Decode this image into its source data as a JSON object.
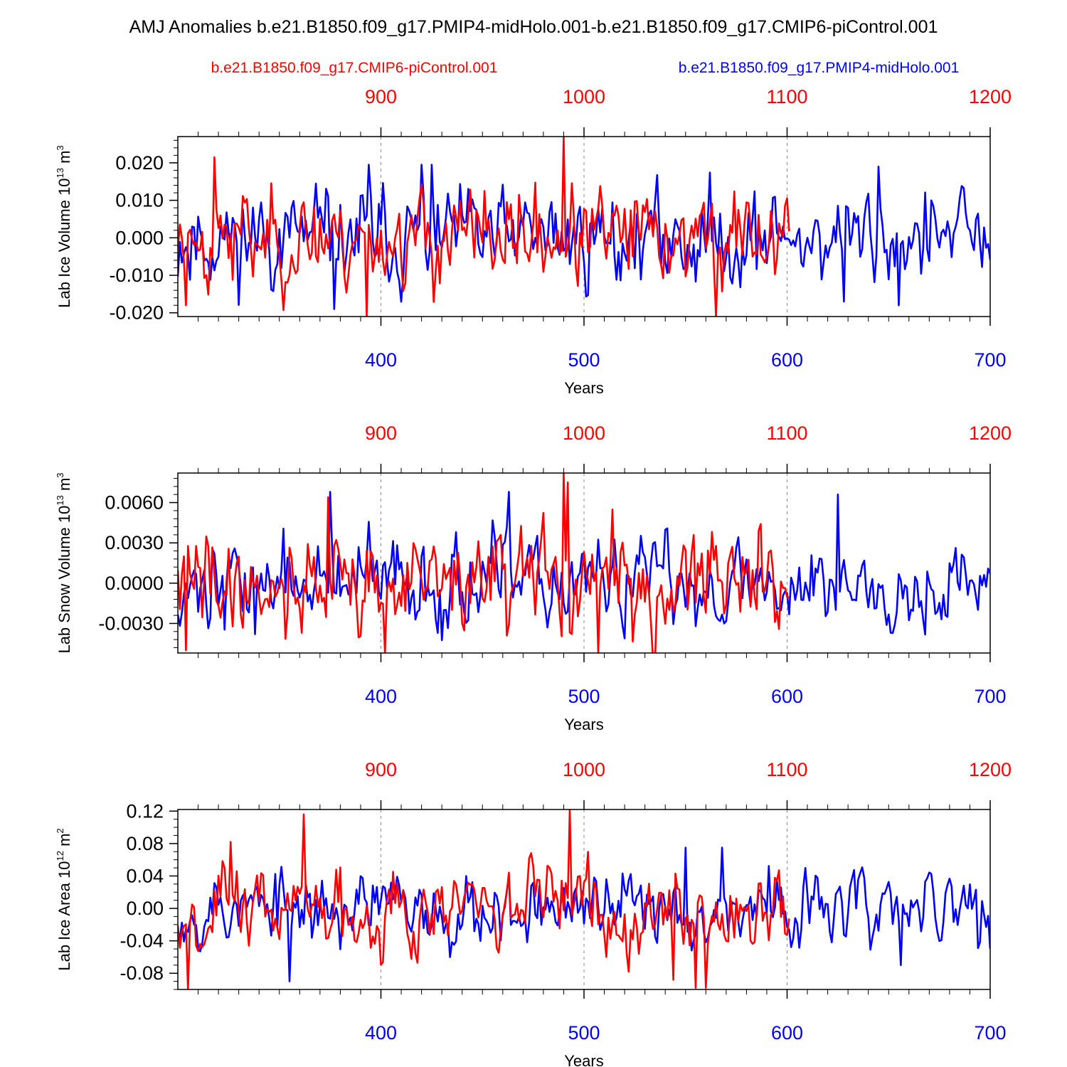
{
  "chart_data": {
    "type": "line",
    "title": "AMJ Anomalies b.e21.B1850.f09_g17.PMIP4-midHolo.001-b.e21.B1850.f09_g17.CMIP6-piControl.001",
    "legend_left": "b.e21.B1850.f09_g17.CMIP6-piControl.001",
    "legend_right": "b.e21.B1850.f09_g17.PMIP4-midHolo.001",
    "colors": {
      "control": "#ff0000",
      "midholo": "#0000ff",
      "frame": "#000000",
      "grid": "#888888"
    },
    "bottom_axis": {
      "min": 300,
      "max": 700,
      "ticks": [
        "400",
        "500",
        "600",
        "700"
      ],
      "tick_values": [
        400,
        500,
        600,
        700
      ],
      "label": "Years",
      "color": "#0000ff"
    },
    "top_axis": {
      "min": 800,
      "max": 1200,
      "ticks": [
        "900",
        "1000",
        "1100",
        "1200"
      ],
      "tick_values": [
        900,
        1000,
        1100,
        1200
      ],
      "color": "#ff0000"
    },
    "panels": [
      {
        "ylabel": "Lab Ice Volume 10",
        "ylabel_exp": "13",
        "ylabel_unit": " m",
        "ylabel_unit_exp": "3",
        "ylim": [
          -0.021,
          0.027
        ],
        "yticks": [
          -0.02,
          -0.01,
          0.0,
          0.01,
          0.02
        ],
        "ytick_labels": [
          "-0.020",
          "-0.010",
          "0.000",
          "0.010",
          "0.020"
        ],
        "ymid_step": 0.002,
        "xlabel": "Years",
        "series": [
          {
            "name": "b.e21.B1850.f09_g17.PMIP4-midHolo.001",
            "color": "#0000ff",
            "x_start": 300,
            "x_end": 700,
            "amp": 0.0085,
            "seed": 11,
            "peaks": [
              [
                394,
                0.0195
              ],
              [
                420,
                0.0195
              ],
              [
                425,
                0.0195
              ],
              [
                645,
                0.019
              ],
              [
                377,
                -0.019
              ],
              [
                628,
                -0.017
              ],
              [
                655,
                -0.018
              ]
            ]
          },
          {
            "name": "b.e21.B1850.f09_g17.CMIP6-piControl.001",
            "color": "#ff0000",
            "x_start": 300,
            "x_end": 601,
            "amp": 0.0085,
            "seed": 23,
            "peaks": [
              [
                318,
                0.0215
              ],
              [
                490,
                0.027
              ],
              [
                393,
                -0.021
              ],
              [
                565,
                -0.021
              ],
              [
                304,
                -0.018
              ]
            ]
          }
        ]
      },
      {
        "ylabel": "Lab Snow Volume 10",
        "ylabel_exp": "13",
        "ylabel_unit": " m",
        "ylabel_unit_exp": "3",
        "ylim": [
          -0.0052,
          0.0082
        ],
        "yticks": [
          -0.003,
          0.0,
          0.003,
          0.006
        ],
        "ytick_labels": [
          "-0.0030",
          "0.0000",
          "0.0030",
          "0.0060"
        ],
        "ymid_step": 0.0006,
        "xlabel": "Years",
        "series": [
          {
            "name": "b.e21.B1850.f09_g17.PMIP4-midHolo.001",
            "color": "#0000ff",
            "x_start": 300,
            "x_end": 700,
            "amp": 0.0022,
            "seed": 37,
            "peaks": [
              [
                375,
                0.0068
              ],
              [
                463,
                0.0068
              ],
              [
                625,
                0.0066
              ],
              [
                338,
                -0.0038
              ]
            ]
          },
          {
            "name": "b.e21.B1850.f09_g17.CMIP6-piControl.001",
            "color": "#ff0000",
            "x_start": 300,
            "x_end": 601,
            "amp": 0.0026,
            "seed": 41,
            "peaks": [
              [
                490,
                0.0082
              ],
              [
                492,
                0.0075
              ],
              [
                374,
                0.0064
              ],
              [
                402,
                -0.0052
              ],
              [
                507,
                -0.0052
              ],
              [
                304,
                -0.005
              ]
            ]
          }
        ]
      },
      {
        "ylabel": "Lab Ice Area 10",
        "ylabel_exp": "12",
        "ylabel_unit": " m",
        "ylabel_unit_exp": "2",
        "ylim": [
          -0.1,
          0.122
        ],
        "yticks": [
          -0.08,
          -0.04,
          0.0,
          0.04,
          0.08,
          0.12
        ],
        "ytick_labels": [
          "-0.08",
          "-0.04",
          "0.00",
          "0.04",
          "0.08",
          "0.12"
        ],
        "ymid_step": 0.01,
        "xlabel": "Years",
        "series": [
          {
            "name": "b.e21.B1850.f09_g17.PMIP4-midHolo.001",
            "color": "#0000ff",
            "x_start": 300,
            "x_end": 700,
            "amp": 0.03,
            "seed": 53,
            "peaks": [
              [
                550,
                0.075
              ],
              [
                568,
                0.075
              ],
              [
                355,
                -0.09
              ],
              [
                700,
                -0.05
              ],
              [
                656,
                -0.07
              ]
            ]
          },
          {
            "name": "b.e21.B1850.f09_g17.CMIP6-piControl.001",
            "color": "#ff0000",
            "x_start": 300,
            "x_end": 601,
            "amp": 0.034,
            "seed": 67,
            "peaks": [
              [
                362,
                0.116
              ],
              [
                493,
                0.122
              ],
              [
                326,
                0.082
              ],
              [
                305,
                -0.1
              ],
              [
                555,
                -0.098
              ],
              [
                560,
                -0.098
              ],
              [
                544,
                -0.088
              ]
            ]
          }
        ]
      }
    ]
  }
}
